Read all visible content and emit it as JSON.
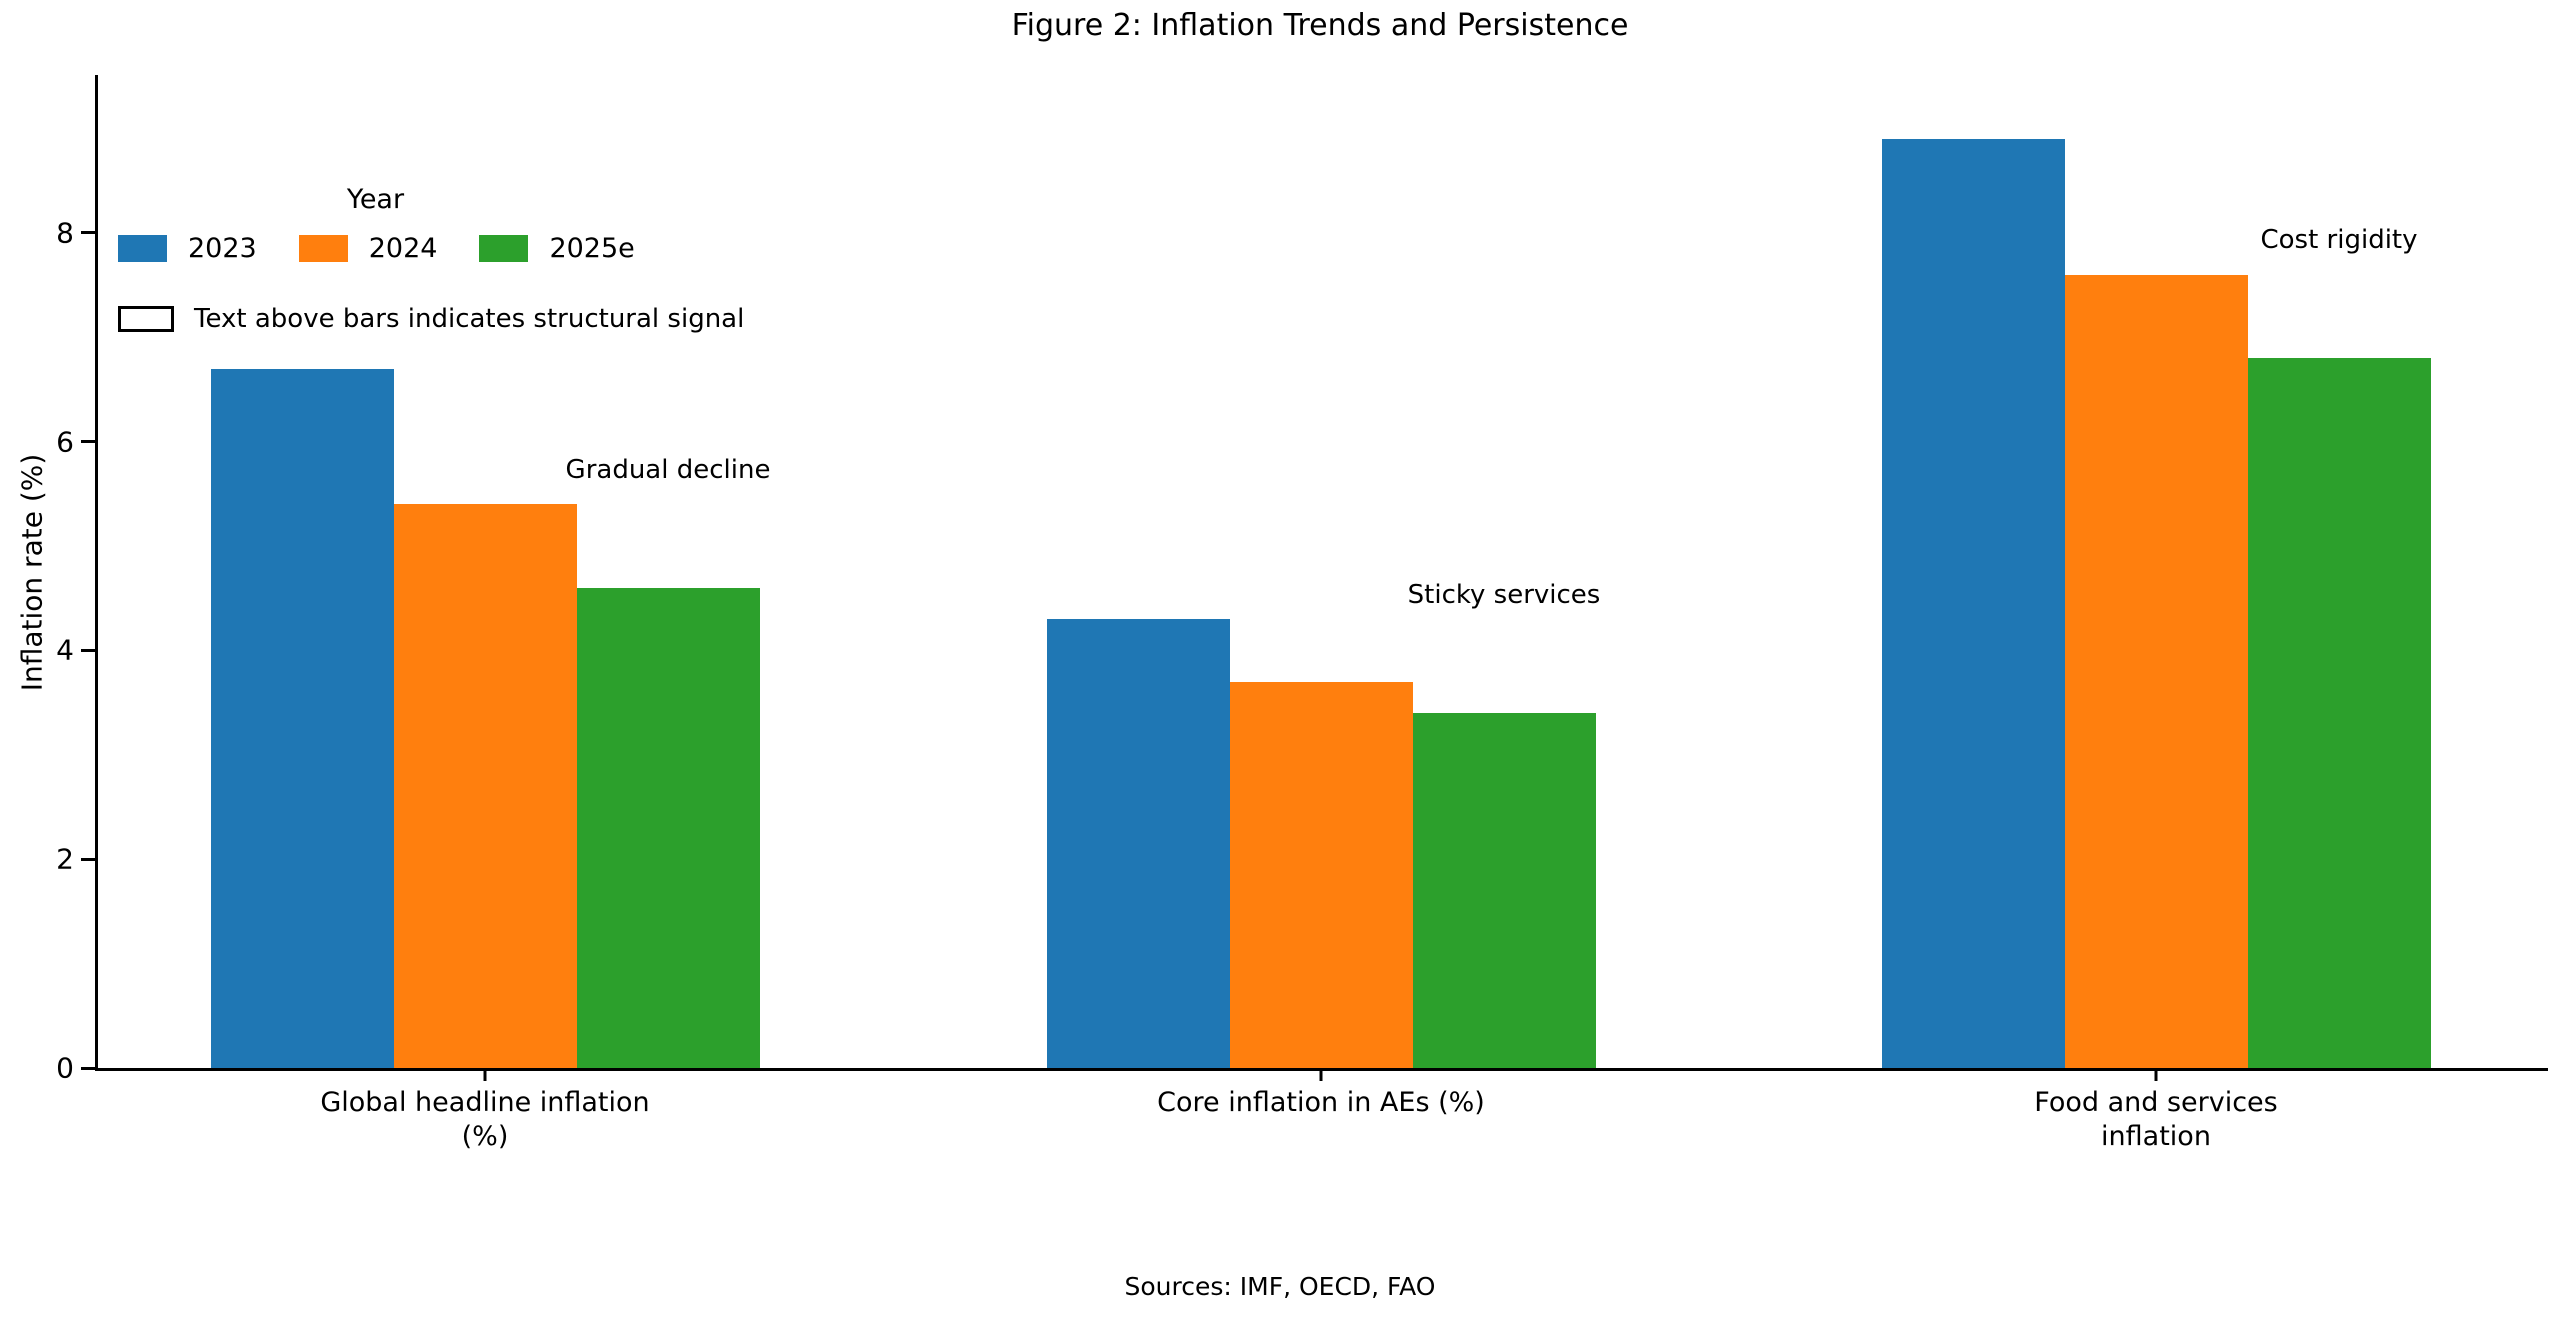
{
  "title": "Figure 2: Inflation Trends and Persistence",
  "footer": "Sources: IMF, OECD, FAO",
  "legend": {
    "title": "Year",
    "items": [
      {
        "label": "2023",
        "color": "#1f77b4"
      },
      {
        "label": "2024",
        "color": "#ff7f0e"
      },
      {
        "label": "2025e",
        "color": "#2ca02c"
      }
    ],
    "note": "Text above bars indicates structural signal"
  },
  "chart_data": {
    "type": "bar",
    "title": "Figure 2: Inflation Trends and Persistence",
    "categories": [
      "Global headline inflation\n(%)",
      "Core inflation in AEs (%)",
      "Food and services\ninflation"
    ],
    "series": [
      {
        "name": "2023",
        "color": "#1f77b4",
        "values": [
          6.7,
          4.3,
          8.9
        ]
      },
      {
        "name": "2024",
        "color": "#ff7f0e",
        "values": [
          5.4,
          3.7,
          7.6
        ]
      },
      {
        "name": "2025e",
        "color": "#2ca02c",
        "values": [
          4.6,
          3.4,
          6.8
        ]
      }
    ],
    "annotations": [
      {
        "text": "Gradual decline",
        "category_index": 0,
        "above_series": "2025e"
      },
      {
        "text": "Sticky services",
        "category_index": 1,
        "above_series": "2025e"
      },
      {
        "text": "Cost rigidity",
        "category_index": 2,
        "above_series": "2025e"
      }
    ],
    "xlabel": "",
    "ylabel": "Inflation rate (%)",
    "yticks": [
      0,
      2,
      4,
      6,
      8
    ],
    "ylim": [
      0,
      9.5
    ],
    "grid": false,
    "legend_title": "Year",
    "legend_position": "upper-left-horizontal",
    "note": "Text above bars indicates structural signal"
  }
}
